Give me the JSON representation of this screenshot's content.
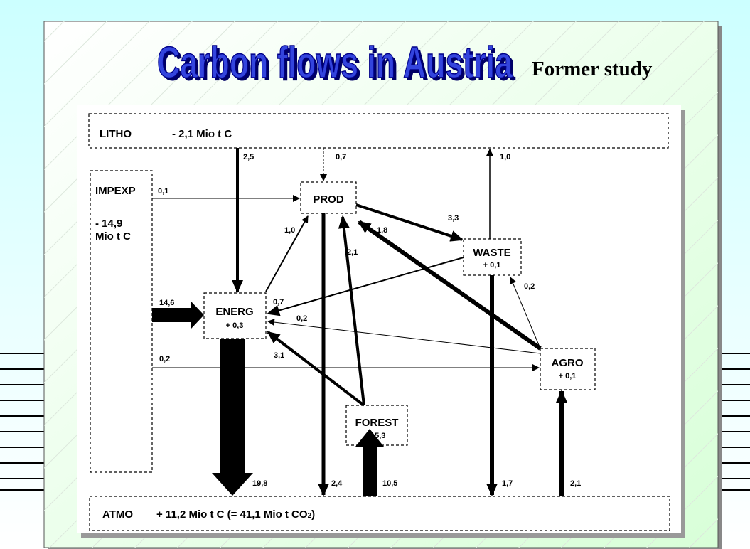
{
  "header": {
    "title": "Carbon flows in Austria",
    "subtitle": "Former study"
  },
  "boxes": {
    "litho": {
      "label": "LITHO",
      "value": "- 2,1 Mio t C"
    },
    "impexp": {
      "label": "IMPEXP",
      "value": [
        "- 14,9",
        "Mio t C"
      ]
    },
    "prod": {
      "label": "PROD"
    },
    "waste": {
      "label": "WASTE",
      "value": "+ 0,1"
    },
    "energ": {
      "label": "ENERG",
      "value": "+ 0,3"
    },
    "agro": {
      "label": "AGRO",
      "value": "+ 0,1"
    },
    "forest": {
      "label": "FOREST",
      "value": "+ 5,3"
    },
    "atmo": {
      "label": "ATMO",
      "value": [
        "+ 11,2 Mio t C  (= 41,1 Mio t CO",
        "2",
        ")"
      ]
    }
  },
  "flows": {
    "litho_energ": "2,5",
    "litho_prod": "0,7",
    "waste_litho": "1,0",
    "impexp_prod": "0,1",
    "prod_waste": "3,3",
    "energ_prod": "1,0",
    "agro_prod": "1,8",
    "forest_prod": "2,1",
    "waste_energ": "0,7",
    "agro_energ": "0,2",
    "agro_waste": "0,2",
    "impexp_energ": "14,6",
    "forest_energ": "3,1",
    "impexp_agro": "0,2",
    "energ_atmo": "19,8",
    "prod_atmo": "2,4",
    "atmo_forest": "10,5",
    "waste_atmo": "1,7",
    "atmo_agro": "2,1"
  },
  "fragments": [
    "R",
    "E",
    "E"
  ]
}
